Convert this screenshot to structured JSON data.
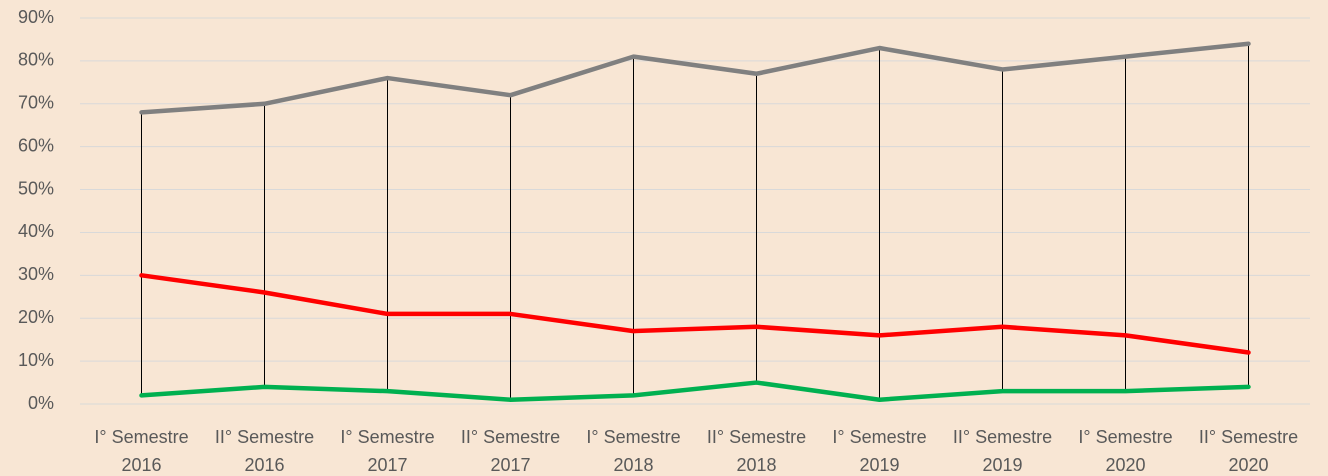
{
  "chart_data": {
    "type": "line",
    "categories": [
      "I° Semestre 2016",
      "II° Semestre 2016",
      "I° Semestre 2017",
      "II° Semestre 2017",
      "I° Semestre 2018",
      "II° Semestre 2018",
      "I° Semestre 2019",
      "II° Semestre 2019",
      "I° Semestre 2020",
      "II° Semestre 2020"
    ],
    "series": [
      {
        "color": "#808080",
        "values": [
          68,
          70,
          76,
          72,
          81,
          77,
          83,
          78,
          81,
          84
        ]
      },
      {
        "color": "#ff0000",
        "values": [
          30,
          26,
          21,
          21,
          17,
          18,
          16,
          18,
          16,
          12
        ]
      },
      {
        "color": "#00b050",
        "values": [
          2,
          4,
          3,
          1,
          2,
          5,
          1,
          3,
          3,
          4
        ]
      }
    ],
    "ylim": [
      0,
      90
    ],
    "yticks": [
      {
        "value": 0,
        "label": "0%"
      },
      {
        "value": 10,
        "label": "10%"
      },
      {
        "value": 20,
        "label": "20%"
      },
      {
        "value": 30,
        "label": "30%"
      },
      {
        "value": 40,
        "label": "40%"
      },
      {
        "value": 50,
        "label": "50%"
      },
      {
        "value": 60,
        "label": "60%"
      },
      {
        "value": 70,
        "label": "70%"
      },
      {
        "value": 80,
        "label": "80%"
      },
      {
        "value": 90,
        "label": "90%"
      }
    ],
    "grid": true,
    "high_low_lines": true
  }
}
